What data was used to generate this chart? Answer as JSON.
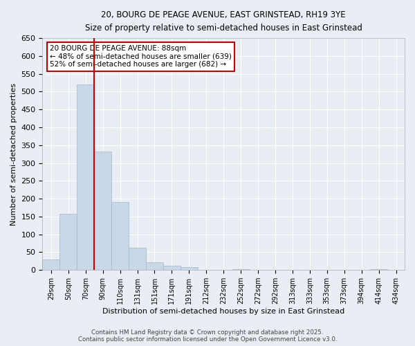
{
  "title_line1": "20, BOURG DE PEAGE AVENUE, EAST GRINSTEAD, RH19 3YE",
  "title_line2": "Size of property relative to semi-detached houses in East Grinstead",
  "xlabel": "Distribution of semi-detached houses by size in East Grinstead",
  "ylabel": "Number of semi-detached properties",
  "bin_labels": [
    "29sqm",
    "50sqm",
    "70sqm",
    "90sqm",
    "110sqm",
    "131sqm",
    "151sqm",
    "171sqm",
    "191sqm",
    "212sqm",
    "232sqm",
    "252sqm",
    "272sqm",
    "292sqm",
    "313sqm",
    "333sqm",
    "353sqm",
    "373sqm",
    "394sqm",
    "414sqm",
    "434sqm"
  ],
  "bar_heights": [
    30,
    158,
    520,
    333,
    190,
    62,
    22,
    13,
    8,
    0,
    0,
    3,
    0,
    0,
    0,
    0,
    0,
    0,
    0,
    3,
    0
  ],
  "bar_color": "#c8d8e8",
  "bar_edge_color": "#a0b8cc",
  "vline_color": "#cc0000",
  "annotation_text": "20 BOURG DE PEAGE AVENUE: 88sqm\n← 48% of semi-detached houses are smaller (639)\n52% of semi-detached houses are larger (682) →",
  "annotation_box_color": "#ffffff",
  "annotation_box_edge": "#cc0000",
  "ylim": [
    0,
    650
  ],
  "yticks": [
    0,
    50,
    100,
    150,
    200,
    250,
    300,
    350,
    400,
    450,
    500,
    550,
    600,
    650
  ],
  "footer_line1": "Contains HM Land Registry data © Crown copyright and database right 2025.",
  "footer_line2": "Contains public sector information licensed under the Open Government Licence v3.0.",
  "background_color": "#e8eef4",
  "grid_color": "#ffffff"
}
